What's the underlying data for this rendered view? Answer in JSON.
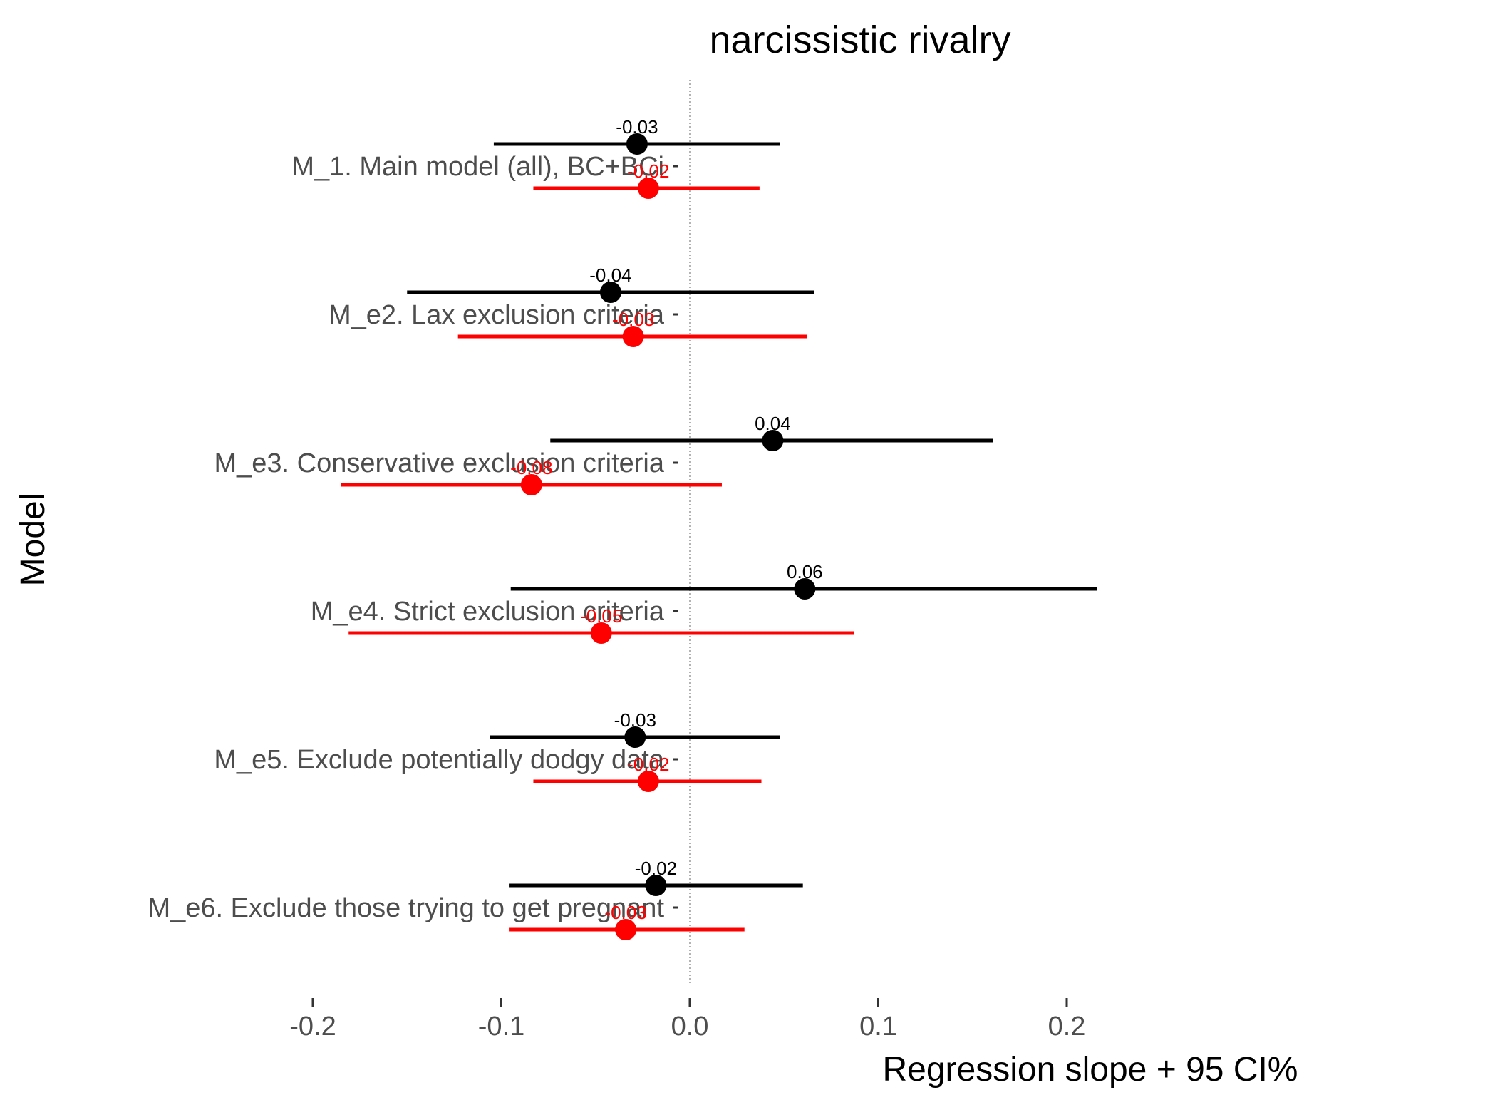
{
  "chart_data": {
    "type": "forest",
    "title": "narcissistic rivalry",
    "xlabel": "Regression slope + 95 CI%",
    "ylabel": "Model",
    "xlim": [
      -0.2,
      0.22
    ],
    "xticks": [
      -0.2,
      -0.1,
      0.0,
      0.1,
      0.2
    ],
    "xtick_labels": [
      "-0.2",
      "-0.1",
      "0.0",
      "0.1",
      "0.2"
    ],
    "reference_line": 0.0,
    "grid": false,
    "legend": "none",
    "categories": [
      "M_1. Main model (all), BC+BCi",
      "M_e2. Lax exclusion criteria",
      "M_e3. Conservative exclusion criteria",
      "M_e4. Strict exclusion criteria",
      "M_e5. Exclude potentially dodgy data",
      "M_e6. Exclude those trying to get pregnant"
    ],
    "series": [
      {
        "color": "#000000",
        "points": [
          {
            "estimate": -0.028,
            "lower": -0.104,
            "upper": 0.048,
            "label": "-0.03"
          },
          {
            "estimate": -0.042,
            "lower": -0.15,
            "upper": 0.066,
            "label": "-0.04"
          },
          {
            "estimate": 0.044,
            "lower": -0.074,
            "upper": 0.161,
            "label": "0.04"
          },
          {
            "estimate": 0.061,
            "lower": -0.095,
            "upper": 0.216,
            "label": "0.06"
          },
          {
            "estimate": -0.029,
            "lower": -0.106,
            "upper": 0.048,
            "label": "-0.03"
          },
          {
            "estimate": -0.018,
            "lower": -0.096,
            "upper": 0.06,
            "label": "-0.02"
          }
        ]
      },
      {
        "color": "#ff0000",
        "points": [
          {
            "estimate": -0.022,
            "lower": -0.083,
            "upper": 0.037,
            "label": "-0.02"
          },
          {
            "estimate": -0.03,
            "lower": -0.123,
            "upper": 0.062,
            "label": "-0.03"
          },
          {
            "estimate": -0.084,
            "lower": -0.185,
            "upper": 0.017,
            "label": "-0.08"
          },
          {
            "estimate": -0.047,
            "lower": -0.181,
            "upper": 0.087,
            "label": "-0.05"
          },
          {
            "estimate": -0.022,
            "lower": -0.083,
            "upper": 0.038,
            "label": "-0.02"
          },
          {
            "estimate": -0.034,
            "lower": -0.096,
            "upper": 0.029,
            "label": "-0.03"
          }
        ]
      }
    ]
  }
}
